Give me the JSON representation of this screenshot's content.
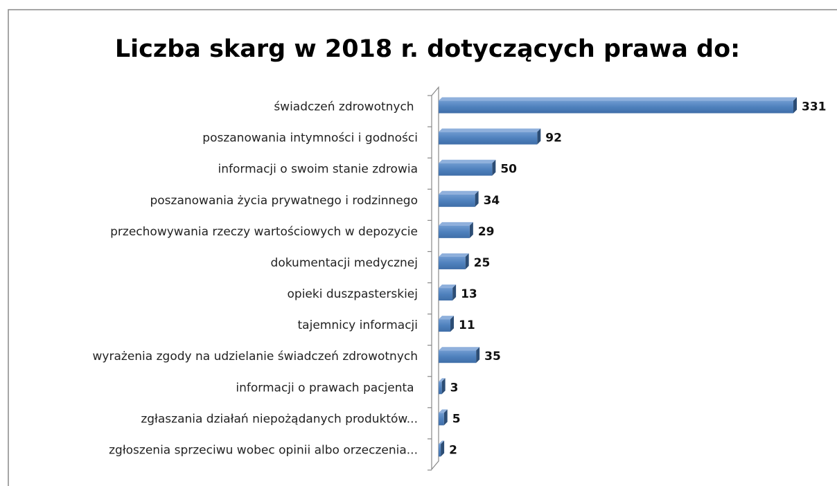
{
  "chart_data": {
    "type": "bar",
    "orientation": "horizontal",
    "title": "Liczba skarg w 2018 r. dotyczących prawa do:",
    "categories": [
      "świadczeń zdrowotnych ",
      "poszanowania intymności i godności",
      "informacji o swoim stanie zdrowia",
      "poszanowania życia prywatnego i rodzinnego",
      "przechowywania rzeczy wartościowych w depozycie",
      "dokumentacji medycznej",
      "opieki duszpasterskiej",
      "tajemnicy informacji",
      "wyrażenia zgody na udzielanie świadczeń zdrowotnych",
      "informacji o prawach pacjenta ",
      "zgłaszania działań niepożądanych produktów...",
      "zgłoszenia sprzeciwu wobec opinii albo orzeczenia..."
    ],
    "values": [
      331,
      92,
      50,
      34,
      29,
      25,
      13,
      11,
      35,
      3,
      5,
      2
    ],
    "color": "#4f81bd",
    "xlim": [
      0,
      331
    ]
  }
}
